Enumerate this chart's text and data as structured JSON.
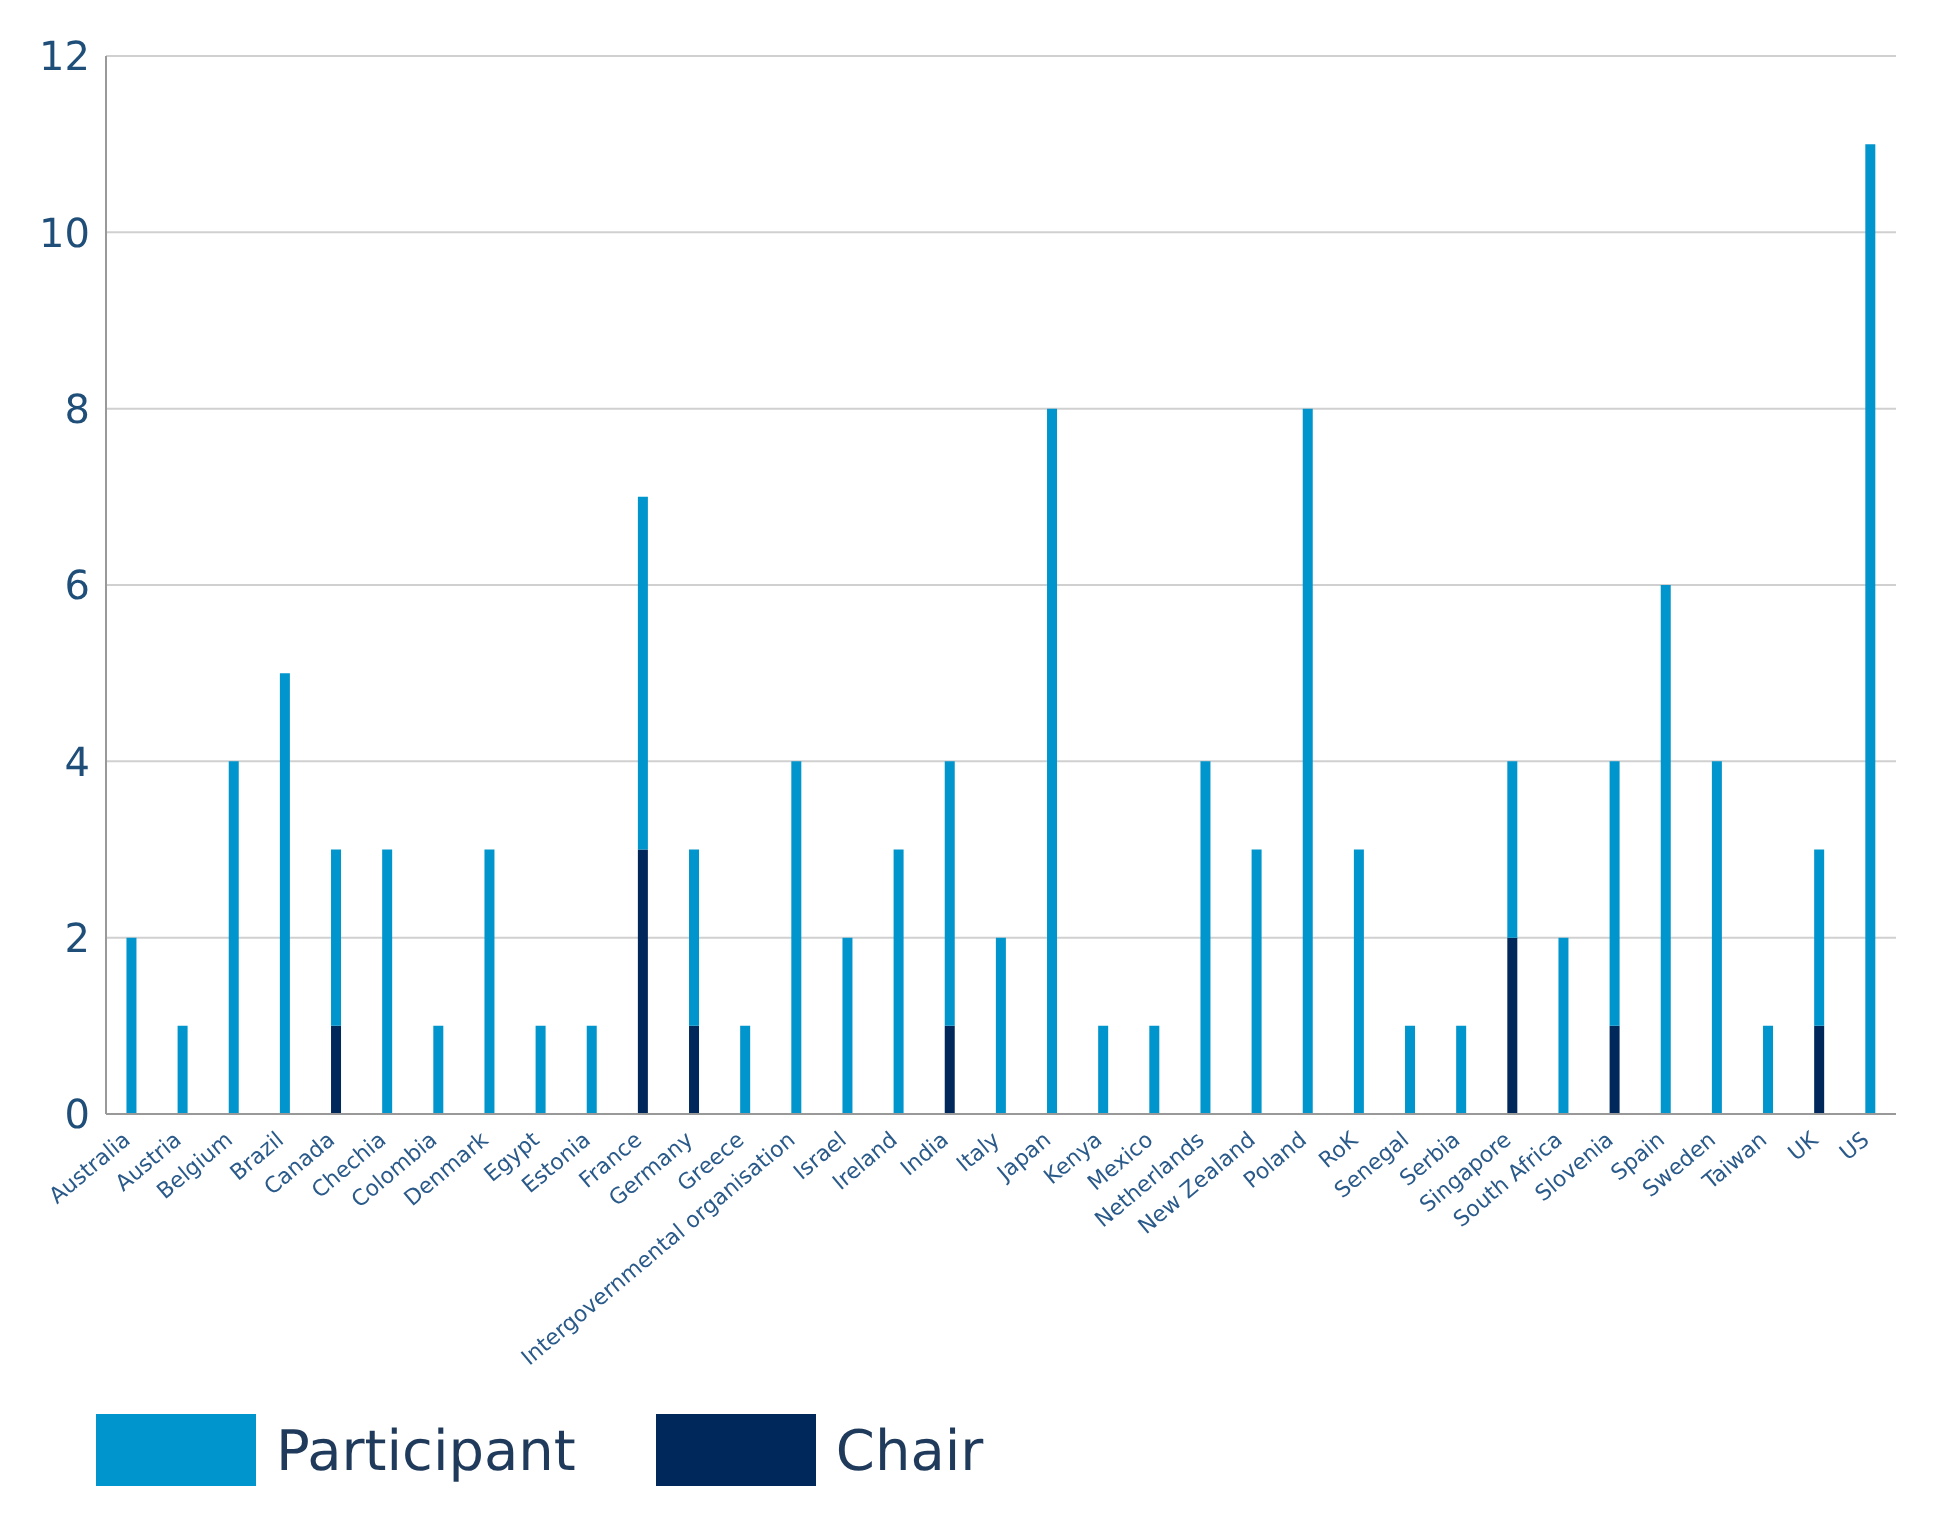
{
  "chart_data": {
    "type": "bar",
    "stacked": true,
    "categories": [
      "Australia",
      "Austria",
      "Belgium",
      "Brazil",
      "Canada",
      "Chechia",
      "Colombia",
      "Denmark",
      "Egypt",
      "Estonia",
      "France",
      "Germany",
      "Greece",
      "Intergovernmental organisation",
      "Israel",
      "Ireland",
      "India",
      "Italy",
      "Japan",
      "Kenya",
      "Mexico",
      "Netherlands",
      "New Zealand",
      "Poland",
      "RoK",
      "Senegal",
      "Serbia",
      "Singapore",
      "South Africa",
      "Slovenia",
      "Spain",
      "Sweden",
      "Taiwan",
      "UK",
      "US"
    ],
    "series": [
      {
        "name": "Chair",
        "color": "#00285a",
        "values": [
          0,
          0,
          0,
          0,
          1,
          0,
          0,
          0,
          0,
          0,
          3,
          1,
          0,
          0,
          0,
          0,
          1,
          0,
          0,
          0,
          0,
          0,
          0,
          0,
          0,
          0,
          0,
          2,
          0,
          1,
          0,
          0,
          0,
          1,
          0
        ]
      },
      {
        "name": "Participant",
        "color": "#0095cc",
        "values": [
          2,
          1,
          4,
          5,
          2,
          3,
          1,
          3,
          1,
          1,
          4,
          2,
          1,
          4,
          2,
          3,
          3,
          2,
          8,
          1,
          1,
          4,
          3,
          8,
          3,
          1,
          1,
          2,
          2,
          3,
          6,
          4,
          1,
          2,
          11
        ]
      }
    ],
    "ylim": [
      0,
      12
    ],
    "yticks": [
      0,
      2,
      4,
      6,
      8,
      10,
      12
    ],
    "grid": "y",
    "legend": "bottom left"
  }
}
